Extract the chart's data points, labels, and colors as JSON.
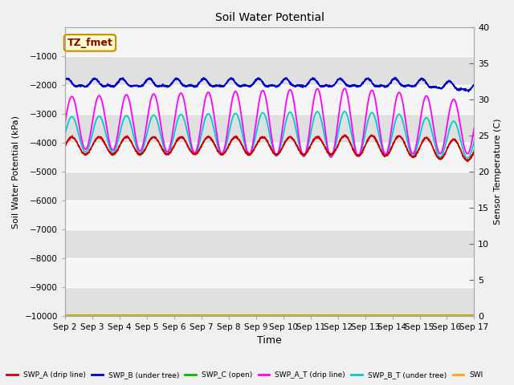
{
  "title": "Soil Water Potential",
  "ylabel_left": "Soil Water Potential (kPa)",
  "ylabel_right": "Sensor Temperature (C)",
  "xlabel": "Time",
  "ylim_left": [
    -10000,
    0
  ],
  "ylim_right": [
    0,
    40
  ],
  "yticks_left": [
    -10000,
    -9000,
    -8000,
    -7000,
    -6000,
    -5000,
    -4000,
    -3000,
    -2000,
    -1000
  ],
  "yticks_right": [
    0,
    5,
    10,
    15,
    20,
    25,
    30,
    35,
    40
  ],
  "xtick_labels": [
    "Sep 2",
    "Sep 3",
    "Sep 4",
    "Sep 5",
    "Sep 6",
    "Sep 7",
    "Sep 8",
    "Sep 9",
    "Sep 10",
    "Sep 11",
    "Sep 12",
    "Sep 13",
    "Sep 14",
    "Sep 15",
    "Sep 16",
    "Sep 17"
  ],
  "annotation_text": "TZ_fmet",
  "fig_bg": "#f0f0f0",
  "plot_bg_light": "#f5f5f5",
  "plot_bg_dark": "#e0e0e0",
  "line_SWP_A": {
    "color": "#cc0000",
    "label": "SWP_A (drip line)"
  },
  "line_SWP_B": {
    "color": "#0000cc",
    "label": "SWP_B (under tree)"
  },
  "line_SWP_C": {
    "color": "#00bb00",
    "label": "SWP_C (open)"
  },
  "line_SWP_AT": {
    "color": "#ff00ff",
    "label": "SWP_A_T (drip line)"
  },
  "line_SWP_BT": {
    "color": "#00cccc",
    "label": "SWP_B_T (under tree)"
  },
  "line_SWP_orange": {
    "color": "#ffaa00",
    "label": "SWI"
  }
}
